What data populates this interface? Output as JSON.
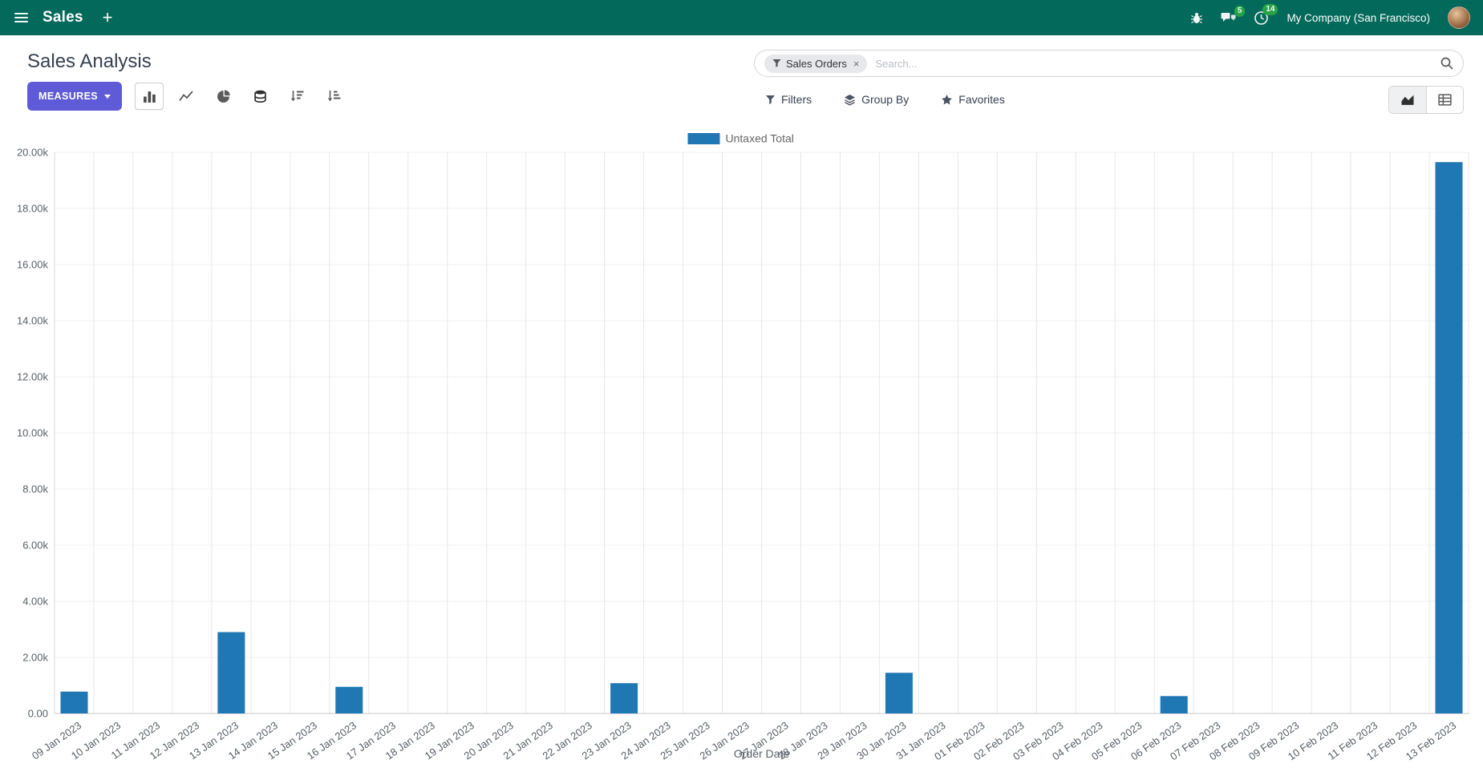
{
  "navbar": {
    "app_name": "Sales",
    "plus_label": "+",
    "messages_badge": "5",
    "activities_badge": "14",
    "company": "My Company (San Francisco)"
  },
  "control_panel": {
    "title": "Sales Analysis",
    "measures_label": "MEASURES",
    "search": {
      "facet": "Sales Orders",
      "remove_facet": "×",
      "placeholder": "Search..."
    },
    "buttons": {
      "filters": "Filters",
      "group_by": "Group By",
      "favorites": "Favorites"
    }
  },
  "chart_data": {
    "type": "bar",
    "title": "",
    "legend": [
      "Untaxed Total"
    ],
    "legend_position": "top",
    "xlabel": "Order Date",
    "ylabel": "",
    "ylim": [
      0,
      20000
    ],
    "ytick_step": 2000,
    "ytick_labels": [
      "0.00",
      "2.00k",
      "4.00k",
      "6.00k",
      "8.00k",
      "10.00k",
      "12.00k",
      "14.00k",
      "16.00k",
      "18.00k",
      "20.00k"
    ],
    "grid": true,
    "bar_color": "#1f77b4",
    "categories": [
      "09 Jan 2023",
      "10 Jan 2023",
      "11 Jan 2023",
      "12 Jan 2023",
      "13 Jan 2023",
      "14 Jan 2023",
      "15 Jan 2023",
      "16 Jan 2023",
      "17 Jan 2023",
      "18 Jan 2023",
      "19 Jan 2023",
      "20 Jan 2023",
      "21 Jan 2023",
      "22 Jan 2023",
      "23 Jan 2023",
      "24 Jan 2023",
      "25 Jan 2023",
      "26 Jan 2023",
      "27 Jan 2023",
      "28 Jan 2023",
      "29 Jan 2023",
      "30 Jan 2023",
      "31 Jan 2023",
      "01 Feb 2023",
      "02 Feb 2023",
      "03 Feb 2023",
      "04 Feb 2023",
      "05 Feb 2023",
      "06 Feb 2023",
      "07 Feb 2023",
      "08 Feb 2023",
      "09 Feb 2023",
      "10 Feb 2023",
      "11 Feb 2023",
      "12 Feb 2023",
      "13 Feb 2023"
    ],
    "series": [
      {
        "name": "Untaxed Total",
        "values": [
          780,
          0,
          0,
          0,
          2900,
          0,
          0,
          950,
          0,
          0,
          0,
          0,
          0,
          0,
          1080,
          0,
          0,
          0,
          0,
          0,
          0,
          1450,
          0,
          0,
          0,
          0,
          0,
          0,
          620,
          0,
          0,
          0,
          0,
          0,
          0,
          19650
        ]
      }
    ]
  },
  "colors": {
    "navbar_bg": "#03695a",
    "primary_button": "#5f5bd7",
    "bar": "#1f77b4",
    "badge_green": "#28a745"
  }
}
